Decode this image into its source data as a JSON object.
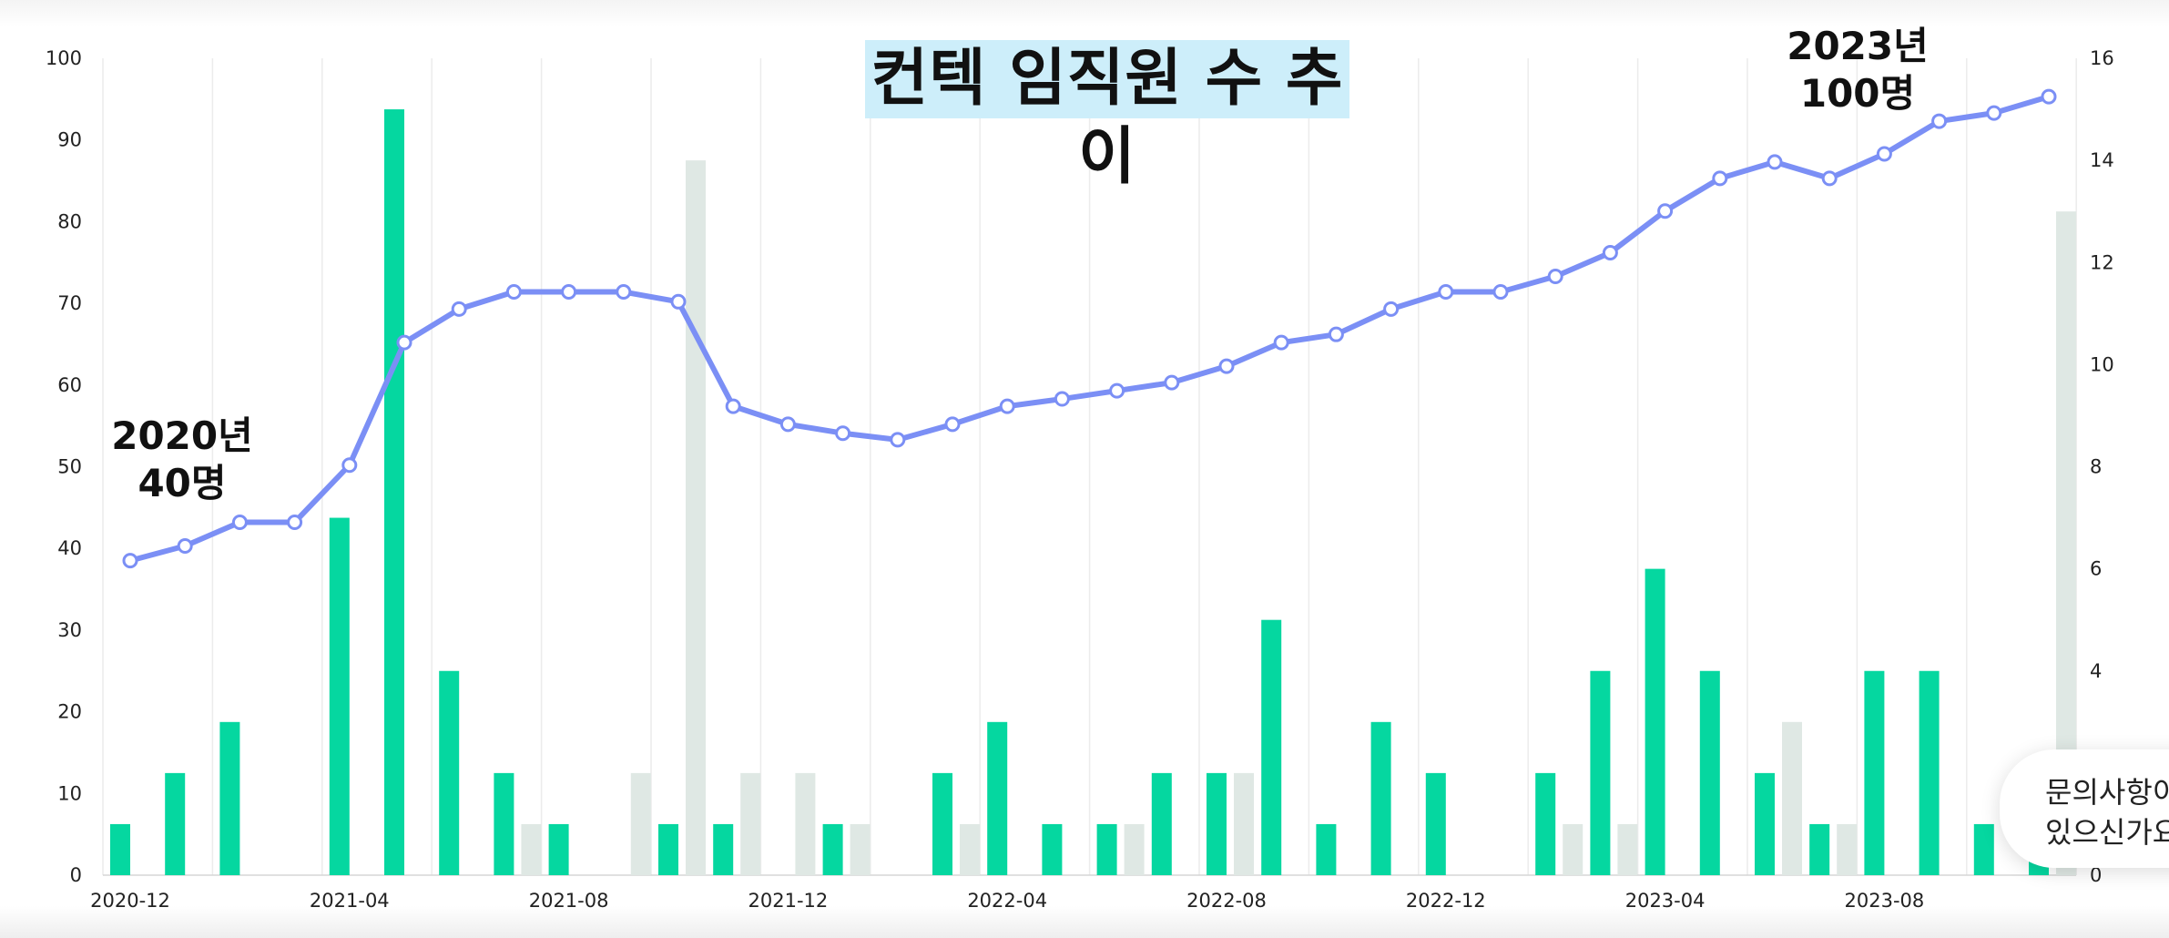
{
  "chart_data": {
    "type": "bar+line",
    "title": "컨텍 임직원 수 추이",
    "x": [
      "2020-12",
      "2021-01",
      "2021-02",
      "2021-03",
      "2021-04",
      "2021-05",
      "2021-06",
      "2021-07",
      "2021-08",
      "2021-09",
      "2021-10",
      "2021-11",
      "2021-12",
      "2022-01",
      "2022-02",
      "2022-03",
      "2022-04",
      "2022-05",
      "2022-06",
      "2022-07",
      "2022-08",
      "2022-09",
      "2022-10",
      "2022-11",
      "2022-12",
      "2023-01",
      "2023-02",
      "2023-03",
      "2023-04",
      "2023-05",
      "2023-06",
      "2023-07",
      "2023-08",
      "2023-09",
      "2023-10",
      "2023-11"
    ],
    "x_tick_labels": [
      "2020-12",
      "2021-04",
      "2021-08",
      "2021-12",
      "2022-04",
      "2022-08",
      "2022-12",
      "2023-04",
      "2023-08"
    ],
    "series": [
      {
        "type": "line",
        "axis": "left",
        "color": "#7b8ff5",
        "values": [
          38.5,
          40.3,
          43.2,
          43.2,
          50.2,
          65.2,
          69.3,
          71.4,
          71.4,
          71.4,
          70.2,
          57.4,
          55.2,
          54.1,
          53.3,
          55.2,
          57.4,
          58.3,
          59.3,
          60.3,
          62.3,
          65.2,
          66.2,
          69.3,
          71.4,
          71.4,
          73.3,
          76.2,
          81.3,
          85.3,
          87.3,
          85.3,
          88.3,
          92.3,
          93.3,
          95.3
        ]
      },
      {
        "type": "bar",
        "axis": "right",
        "color": "#05d7a0",
        "values": [
          1,
          2,
          3,
          0,
          7,
          15,
          4,
          2,
          1,
          0,
          1,
          1,
          0,
          1,
          0,
          2,
          3,
          1,
          1,
          2,
          2,
          5,
          1,
          3,
          2,
          0,
          2,
          4,
          6,
          4,
          2,
          1,
          4,
          4,
          1,
          0.5
        ]
      },
      {
        "type": "bar",
        "axis": "right",
        "color": "#dfe8e4",
        "values": [
          0,
          0,
          0,
          0,
          0,
          0,
          0,
          1,
          0,
          2,
          14,
          2,
          2,
          1,
          0,
          1,
          0,
          0,
          1,
          0,
          2,
          0,
          0,
          0,
          0,
          0,
          1,
          1,
          0,
          0,
          3,
          1,
          0,
          0,
          0,
          13
        ]
      }
    ],
    "y_left": {
      "min": 0,
      "max": 100,
      "ticks": [
        0,
        10,
        20,
        30,
        40,
        50,
        60,
        70,
        80,
        90,
        100
      ]
    },
    "y_right": {
      "min": 0,
      "max": 16,
      "ticks": [
        0,
        2,
        4,
        6,
        8,
        10,
        12,
        14,
        16
      ]
    },
    "grid": "vertical",
    "annotations": [
      {
        "line1": "2020년",
        "line2": "40명"
      },
      {
        "line1": "2023년",
        "line2": "100명"
      }
    ]
  },
  "chat_widget": {
    "line1": "문의사항이",
    "line2": "있으신가요?"
  }
}
